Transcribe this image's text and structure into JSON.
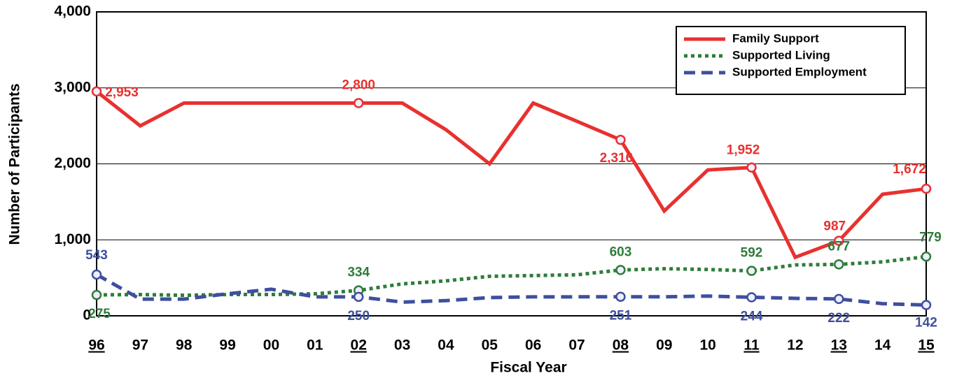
{
  "chart_data": {
    "type": "line",
    "x_label": "Fiscal Year",
    "y_label": "Number of Participants",
    "categories": [
      "96",
      "97",
      "98",
      "99",
      "00",
      "01",
      "02",
      "03",
      "04",
      "05",
      "06",
      "07",
      "08",
      "09",
      "10",
      "11",
      "12",
      "13",
      "14",
      "15"
    ],
    "series": [
      {
        "name": "Family Support",
        "color": "#e8312f",
        "dash": "solid",
        "values": [
          2953,
          2500,
          2800,
          2800,
          2800,
          2800,
          2800,
          2800,
          2450,
          2000,
          2800,
          2560,
          2316,
          1380,
          1920,
          1952,
          770,
          987,
          1600,
          1672
        ],
        "value_labels": [
          "2,953",
          null,
          null,
          null,
          null,
          null,
          "2,800",
          null,
          null,
          null,
          null,
          null,
          "2,316",
          null,
          null,
          "1,952",
          null,
          "987",
          null,
          "1,672"
        ]
      },
      {
        "name": "Supported Living",
        "color": "#2e7d3a",
        "dash": "dotted",
        "values": [
          275,
          280,
          270,
          280,
          280,
          290,
          334,
          420,
          460,
          520,
          530,
          540,
          603,
          620,
          610,
          592,
          670,
          677,
          710,
          779
        ],
        "value_labels": [
          "275",
          null,
          null,
          null,
          null,
          null,
          "334",
          null,
          null,
          null,
          null,
          null,
          "603",
          null,
          null,
          "592",
          null,
          "677",
          null,
          "779"
        ]
      },
      {
        "name": "Supported Employment",
        "color": "#3e4f9e",
        "dash": "dashed",
        "values": [
          543,
          220,
          220,
          290,
          350,
          250,
          250,
          180,
          200,
          240,
          250,
          250,
          251,
          250,
          260,
          244,
          230,
          222,
          160,
          142
        ],
        "value_labels": [
          "543",
          null,
          null,
          null,
          null,
          null,
          "250",
          null,
          null,
          null,
          null,
          null,
          "251",
          null,
          null,
          "244",
          null,
          "222",
          null,
          "142"
        ]
      }
    ],
    "ylim": [
      0,
      4000
    ],
    "yticks": [
      0,
      {
        "value": 1000,
        "label": "1,000"
      },
      {
        "value": 2000,
        "label": "2,000"
      },
      {
        "value": 3000,
        "label": "3,000"
      },
      {
        "value": 4000,
        "label": "4,000"
      }
    ],
    "grid": true,
    "legend": "upper right"
  }
}
